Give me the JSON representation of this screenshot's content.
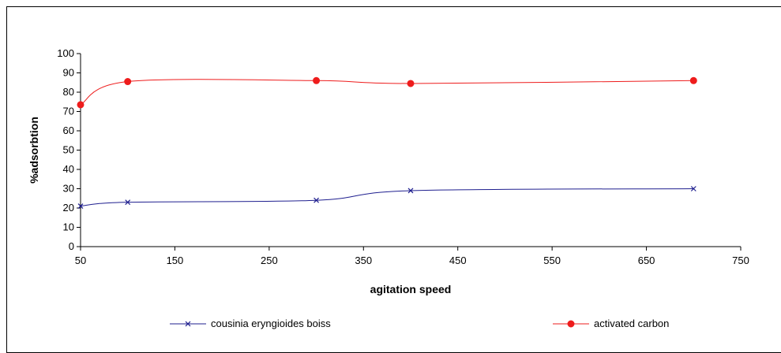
{
  "chart_data": {
    "type": "line",
    "title": "",
    "xlabel": "agitation speed",
    "ylabel": "%adsorbtion",
    "xlim": [
      50,
      750
    ],
    "ylim": [
      0,
      100
    ],
    "xticks": [
      50,
      150,
      250,
      350,
      450,
      550,
      650,
      750
    ],
    "yticks": [
      0,
      10,
      20,
      30,
      40,
      50,
      60,
      70,
      80,
      90,
      100
    ],
    "grid": false,
    "legend_position": "bottom",
    "series": [
      {
        "name": "cousinia eryngioides boiss",
        "color": "#1f1f8f",
        "marker": "x",
        "x": [
          50,
          100,
          300,
          400,
          700
        ],
        "y": [
          21,
          23,
          24,
          29,
          30
        ]
      },
      {
        "name": "activated carbon",
        "color": "#ee1c1c",
        "marker": "circle",
        "x": [
          50,
          100,
          300,
          400,
          700
        ],
        "y": [
          73.5,
          85.5,
          86,
          84.5,
          86
        ]
      }
    ]
  }
}
